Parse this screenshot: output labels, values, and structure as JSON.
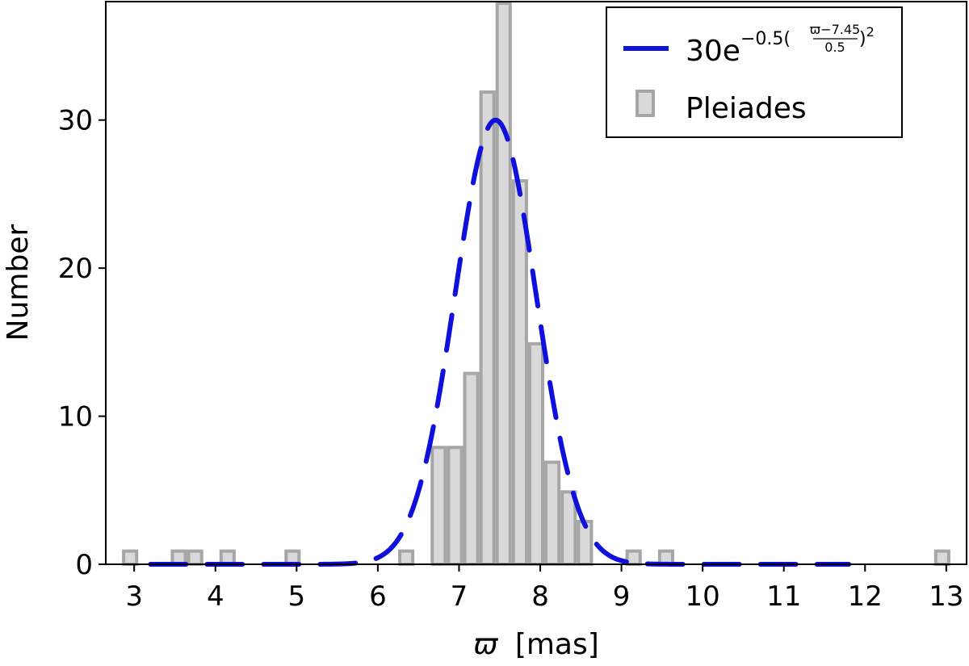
{
  "chart_data": {
    "type": "bar",
    "title": "",
    "xlabel_symbol": "ϖ",
    "xlabel_unit": "[mas]",
    "ylabel": "Number",
    "xlim": [
      2.65,
      13.25
    ],
    "ylim": [
      0,
      38
    ],
    "xticks": [
      "3",
      "4",
      "5",
      "6",
      "7",
      "8",
      "9",
      "10",
      "11",
      "12",
      "13"
    ],
    "yticks": [
      "0",
      "10",
      "20",
      "30"
    ],
    "grid": false,
    "legend_position": "top-right",
    "bin_width": 0.2,
    "series": [
      {
        "name": "Pleiades",
        "kind": "histogram",
        "color": "#d9d9d9",
        "edge_color": "#a6a6a6",
        "bins": [
          {
            "x": 2.95,
            "y": 1
          },
          {
            "x": 3.55,
            "y": 1
          },
          {
            "x": 3.75,
            "y": 1
          },
          {
            "x": 4.15,
            "y": 1
          },
          {
            "x": 4.95,
            "y": 1
          },
          {
            "x": 6.35,
            "y": 1
          },
          {
            "x": 6.75,
            "y": 8
          },
          {
            "x": 6.95,
            "y": 8
          },
          {
            "x": 7.15,
            "y": 13
          },
          {
            "x": 7.35,
            "y": 32
          },
          {
            "x": 7.55,
            "y": 38
          },
          {
            "x": 7.75,
            "y": 26
          },
          {
            "x": 7.95,
            "y": 15
          },
          {
            "x": 8.15,
            "y": 7
          },
          {
            "x": 8.35,
            "y": 5
          },
          {
            "x": 8.55,
            "y": 3
          },
          {
            "x": 9.15,
            "y": 1
          },
          {
            "x": 9.55,
            "y": 1
          },
          {
            "x": 12.95,
            "y": 1
          }
        ]
      },
      {
        "name": "30e^{-0.5((ϖ-7.45)/0.5)^2}",
        "kind": "gaussian",
        "color": "#1010dd",
        "amplitude": 30,
        "mean": 7.45,
        "sigma": 0.5,
        "x_range": [
          3.2,
          11.8
        ]
      }
    ],
    "legend": {
      "gaussian_prefix": "30e",
      "gaussian_exponent": "−0.5(",
      "gaussian_numerator": "ϖ−7.45",
      "gaussian_denominator": "0.5",
      "gaussian_power": ")",
      "gaussian_power_value": "2",
      "histogram_label": "Pleiades"
    }
  }
}
